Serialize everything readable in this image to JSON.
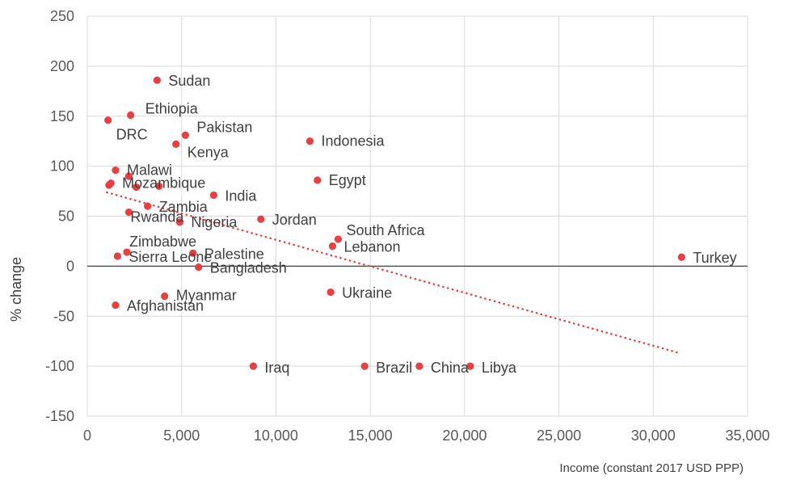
{
  "chart_data": {
    "type": "scatter",
    "xlabel": "Income (constant 2017 USD PPP)",
    "ylabel": "% change",
    "xlim": [
      0,
      35000
    ],
    "ylim": [
      -150,
      250
    ],
    "x_ticks": [
      "0",
      "5,000",
      "10,000",
      "15,000",
      "20,000",
      "25,000",
      "30,000",
      "35,000"
    ],
    "y_ticks": [
      "250",
      "200",
      "150",
      "100",
      "50",
      "0",
      "-50",
      "-100",
      "-150"
    ],
    "grid": "vertical and horizontal",
    "marker_color": "#e84040",
    "trendline_color": "#e84040",
    "trendline": {
      "x": [
        1000,
        31400
      ],
      "y": [
        74,
        -87
      ]
    },
    "points": [
      {
        "label": "Sudan",
        "x": 3700,
        "y": 186
      },
      {
        "label": "Ethiopia",
        "x": 2300,
        "y": 151
      },
      {
        "label": "DRC",
        "x": 1100,
        "y": 146
      },
      {
        "label": "Pakistan",
        "x": 5200,
        "y": 131
      },
      {
        "label": "Kenya",
        "x": 4700,
        "y": 122
      },
      {
        "label": "Indonesia",
        "x": 11800,
        "y": 125
      },
      {
        "label": "Malawi",
        "x": 1500,
        "y": 96
      },
      {
        "label": "",
        "x": 2200,
        "y": 90
      },
      {
        "label": "Egypt",
        "x": 12200,
        "y": 86
      },
      {
        "label": "Mozambique",
        "x": 1250,
        "y": 83
      },
      {
        "label": "",
        "x": 1150,
        "y": 81
      },
      {
        "label": "",
        "x": 2600,
        "y": 79
      },
      {
        "label": "",
        "x": 3800,
        "y": 80
      },
      {
        "label": "India",
        "x": 6700,
        "y": 71
      },
      {
        "label": "Zambia",
        "x": 3200,
        "y": 60
      },
      {
        "label": "Rwanda",
        "x": 2200,
        "y": 54
      },
      {
        "label": "Jordan",
        "x": 9200,
        "y": 47
      },
      {
        "label": "Nigeria",
        "x": 4900,
        "y": 44
      },
      {
        "label": "South Africa",
        "x": 13300,
        "y": 27
      },
      {
        "label": "Lebanon",
        "x": 13000,
        "y": 20
      },
      {
        "label": "Zimbabwe",
        "x": 2100,
        "y": 14
      },
      {
        "label": "Palestine",
        "x": 5600,
        "y": 13
      },
      {
        "label": "Sierra Leone",
        "x": 1600,
        "y": 10
      },
      {
        "label": "Turkey",
        "x": 31500,
        "y": 9
      },
      {
        "label": "Bangladesh",
        "x": 5900,
        "y": -1
      },
      {
        "label": "Ukraine",
        "x": 12900,
        "y": -26
      },
      {
        "label": "Myanmar",
        "x": 4100,
        "y": -30
      },
      {
        "label": "Afghanistan",
        "x": 1500,
        "y": -39
      },
      {
        "label": "Iraq",
        "x": 8800,
        "y": -100
      },
      {
        "label": "Brazil",
        "x": 14700,
        "y": -100
      },
      {
        "label": "China",
        "x": 17600,
        "y": -100
      },
      {
        "label": "Libya",
        "x": 20300,
        "y": -100
      }
    ]
  }
}
